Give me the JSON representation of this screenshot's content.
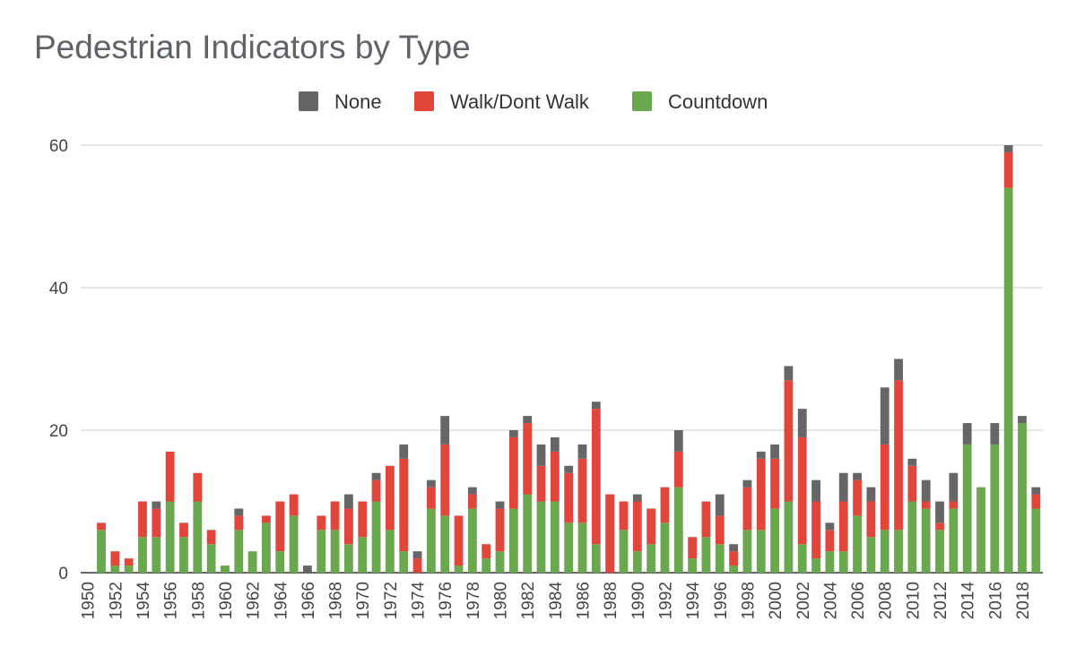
{
  "chart_data": {
    "type": "bar",
    "stacked": true,
    "title": "Pedestrian Indicators by Type",
    "xlabel": "",
    "ylabel": "",
    "ylim": [
      0,
      60
    ],
    "yticks": [
      0,
      20,
      40,
      60
    ],
    "grid": true,
    "legend_position": "top-center",
    "x_tick_step": 2,
    "categories": [
      1950,
      1951,
      1952,
      1953,
      1954,
      1955,
      1956,
      1957,
      1958,
      1959,
      1960,
      1961,
      1962,
      1963,
      1964,
      1965,
      1966,
      1967,
      1968,
      1969,
      1970,
      1971,
      1972,
      1973,
      1974,
      1975,
      1976,
      1977,
      1978,
      1979,
      1980,
      1981,
      1982,
      1983,
      1984,
      1985,
      1986,
      1987,
      1988,
      1989,
      1990,
      1991,
      1992,
      1993,
      1994,
      1995,
      1996,
      1997,
      1998,
      1999,
      2000,
      2001,
      2002,
      2003,
      2004,
      2005,
      2006,
      2007,
      2008,
      2009,
      2010,
      2011,
      2012,
      2013,
      2014,
      2015,
      2016,
      2017,
      2018,
      2019
    ],
    "series": [
      {
        "name": "Countdown",
        "color": "#6aa84f",
        "values": [
          0,
          6,
          1,
          1,
          5,
          5,
          10,
          5,
          10,
          4,
          1,
          6,
          3,
          7,
          3,
          8,
          0,
          6,
          6,
          4,
          5,
          10,
          6,
          3,
          0,
          9,
          8,
          1,
          9,
          2,
          3,
          9,
          11,
          10,
          10,
          7,
          7,
          4,
          0,
          6,
          3,
          4,
          7,
          12,
          2,
          5,
          4,
          1,
          6,
          6,
          9,
          10,
          4,
          2,
          3,
          3,
          8,
          5,
          6,
          6,
          10,
          9,
          6,
          9,
          18,
          12,
          18,
          54,
          21,
          9
        ]
      },
      {
        "name": "Walk/Dont Walk",
        "color": "#e2463b",
        "values": [
          0,
          1,
          2,
          1,
          5,
          4,
          7,
          2,
          4,
          2,
          0,
          2,
          0,
          1,
          7,
          3,
          0,
          2,
          4,
          5,
          5,
          3,
          9,
          13,
          2,
          3,
          10,
          7,
          2,
          2,
          6,
          10,
          10,
          5,
          7,
          7,
          9,
          19,
          11,
          4,
          7,
          5,
          5,
          5,
          3,
          5,
          4,
          2,
          6,
          10,
          7,
          17,
          15,
          8,
          3,
          7,
          5,
          5,
          12,
          21,
          5,
          1,
          1,
          1,
          0,
          0,
          0,
          5,
          0,
          2
        ]
      },
      {
        "name": "None",
        "color": "#666666",
        "values": [
          0,
          0,
          0,
          0,
          0,
          1,
          0,
          0,
          0,
          0,
          0,
          1,
          0,
          0,
          0,
          0,
          1,
          0,
          0,
          2,
          0,
          1,
          0,
          2,
          1,
          1,
          4,
          0,
          1,
          0,
          1,
          1,
          1,
          3,
          2,
          1,
          2,
          1,
          0,
          0,
          1,
          0,
          0,
          3,
          0,
          0,
          3,
          1,
          1,
          1,
          2,
          2,
          4,
          3,
          1,
          4,
          1,
          2,
          8,
          3,
          1,
          3,
          3,
          4,
          3,
          0,
          3,
          1,
          1,
          1
        ]
      }
    ],
    "legend_order": [
      "None",
      "Walk/Dont Walk",
      "Countdown"
    ]
  }
}
